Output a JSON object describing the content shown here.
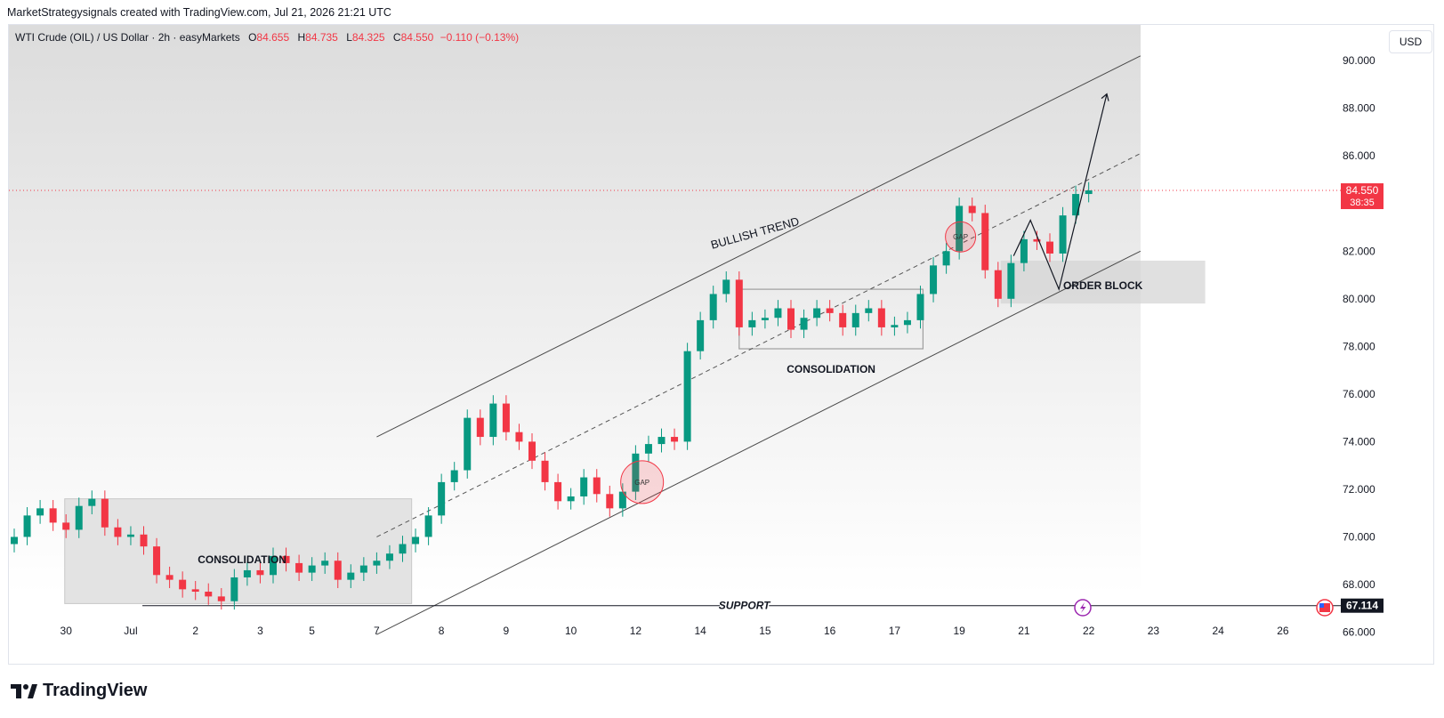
{
  "header": {
    "credit": "MarketStrategysignals created with TradingView.com, Jul 21, 2026 21:21 UTC"
  },
  "legend": {
    "symbol": "WTI Crude (OIL) / US Dollar · 2h · easyMarkets",
    "o_label": "O",
    "o": "84.655",
    "h_label": "H",
    "h": "84.735",
    "l_label": "L",
    "l": "84.325",
    "c_label": "C",
    "c": "84.550",
    "change": "−0.110 (−0.13%)"
  },
  "currency_button": "USD",
  "footer": {
    "brand": "TradingView",
    "logo_icon": "tradingview-logo-icon"
  },
  "colors": {
    "up": "#089981",
    "down": "#f23645",
    "price_line": "#f23645",
    "support": "#131722",
    "annotation": "#131722"
  },
  "chart_data": {
    "type": "candlestick",
    "ylim": [
      64.6,
      91.5
    ],
    "y_ticks": [
      "90.000",
      "88.000",
      "86.000",
      "84.000",
      "82.000",
      "80.000",
      "78.000",
      "76.000",
      "74.000",
      "72.000",
      "70.000",
      "68.000",
      "66.000"
    ],
    "x_ticks": [
      {
        "label": "30",
        "idx": 4
      },
      {
        "label": "Jul",
        "idx": 9
      },
      {
        "label": "2",
        "idx": 14
      },
      {
        "label": "3",
        "idx": 19
      },
      {
        "label": "5",
        "idx": 23
      },
      {
        "label": "7",
        "idx": 28
      },
      {
        "label": "8",
        "idx": 33
      },
      {
        "label": "9",
        "idx": 38
      },
      {
        "label": "10",
        "idx": 43
      },
      {
        "label": "12",
        "idx": 48
      },
      {
        "label": "14",
        "idx": 53
      },
      {
        "label": "15",
        "idx": 58
      },
      {
        "label": "16",
        "idx": 63
      },
      {
        "label": "17",
        "idx": 68
      },
      {
        "label": "19",
        "idx": 73
      },
      {
        "label": "21",
        "idx": 78
      },
      {
        "label": "22",
        "idx": 83
      },
      {
        "label": "23",
        "idx": 88
      },
      {
        "label": "24",
        "idx": 93
      },
      {
        "label": "26",
        "idx": 98
      }
    ],
    "series_points": [
      [
        0,
        70.0
      ],
      [
        1,
        70.9
      ],
      [
        2,
        71.2
      ],
      [
        3,
        70.6
      ],
      [
        4,
        70.3
      ],
      [
        5,
        71.3
      ],
      [
        6,
        71.6
      ],
      [
        7,
        70.4
      ],
      [
        8,
        70.0
      ],
      [
        9,
        70.1
      ],
      [
        10,
        69.6
      ],
      [
        11,
        68.4
      ],
      [
        12,
        68.2
      ],
      [
        13,
        67.8
      ],
      [
        14,
        67.7
      ],
      [
        15,
        67.5
      ],
      [
        16,
        67.3
      ],
      [
        17,
        68.3
      ],
      [
        18,
        68.6
      ],
      [
        19,
        68.4
      ],
      [
        20,
        69.2
      ],
      [
        21,
        68.9
      ],
      [
        22,
        68.5
      ],
      [
        23,
        68.8
      ],
      [
        24,
        69.0
      ],
      [
        25,
        68.2
      ],
      [
        26,
        68.5
      ],
      [
        27,
        68.8
      ],
      [
        28,
        69.0
      ],
      [
        29,
        69.3
      ],
      [
        30,
        69.7
      ],
      [
        31,
        70.0
      ],
      [
        32,
        70.9
      ],
      [
        33,
        72.3
      ],
      [
        34,
        72.8
      ],
      [
        35,
        75.0
      ],
      [
        36,
        74.2
      ],
      [
        37,
        75.6
      ],
      [
        38,
        74.4
      ],
      [
        39,
        74.0
      ],
      [
        40,
        73.2
      ],
      [
        41,
        72.3
      ],
      [
        42,
        71.5
      ],
      [
        43,
        71.7
      ],
      [
        44,
        72.5
      ],
      [
        45,
        71.8
      ],
      [
        46,
        71.2
      ],
      [
        47,
        71.9
      ],
      [
        48,
        73.5
      ],
      [
        49,
        73.9
      ],
      [
        50,
        74.2
      ],
      [
        51,
        74.0
      ],
      [
        52,
        77.8
      ],
      [
        53,
        79.1
      ],
      [
        54,
        80.2
      ],
      [
        55,
        80.8
      ],
      [
        56,
        78.8
      ],
      [
        57,
        79.1
      ],
      [
        58,
        79.2
      ],
      [
        59,
        79.6
      ],
      [
        60,
        78.7
      ],
      [
        61,
        79.2
      ],
      [
        62,
        79.6
      ],
      [
        63,
        79.4
      ],
      [
        64,
        78.8
      ],
      [
        65,
        79.4
      ],
      [
        66,
        79.6
      ],
      [
        67,
        78.8
      ],
      [
        68,
        78.9
      ],
      [
        69,
        79.1
      ],
      [
        70,
        80.2
      ],
      [
        71,
        81.4
      ],
      [
        72,
        82.0
      ],
      [
        73,
        83.9
      ],
      [
        74,
        83.6
      ],
      [
        75,
        81.2
      ],
      [
        76,
        80.0
      ],
      [
        77,
        81.5
      ],
      [
        78,
        82.5
      ],
      [
        79,
        82.4
      ],
      [
        80,
        81.9
      ],
      [
        81,
        83.5
      ],
      [
        82,
        84.4
      ],
      [
        83,
        84.55
      ]
    ],
    "last_price_label": "84.550",
    "countdown": "38:35",
    "support_level": 67.114,
    "support_label": "SUPPORT",
    "support_value_label": "67.114",
    "annotations": {
      "trend_label": "BULLISH TREND",
      "consolidation_1": "CONSOLIDATION",
      "consolidation_2": "CONSOLIDATION",
      "order_block": "ORDER BLOCK",
      "gap_1": "GAP",
      "gap_2": "GAP"
    },
    "icons": {
      "event_icon": "lightning-icon",
      "flag_icon": "us-flag-icon"
    }
  }
}
